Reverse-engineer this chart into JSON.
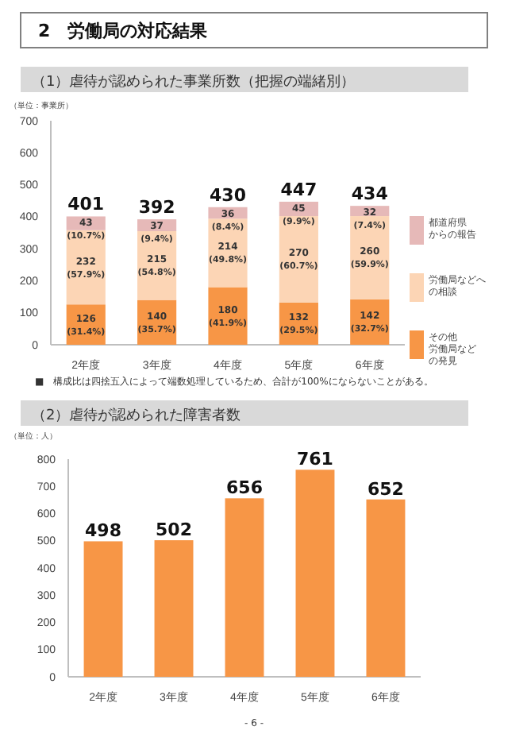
{
  "chart_data": [
    {
      "type": "bar",
      "title": "2　労働局の対応結果",
      "subtitle": "（1）虐待が認められた事業所数（把握の端緒別）",
      "ylabel": "（単位：事業所）",
      "categories": [
        "2年度",
        "3年度",
        "4年度",
        "5年度",
        "6年度"
      ],
      "stacked": true,
      "legend": "right",
      "ylim": [
        0,
        700
      ],
      "yticks": [
        0,
        100,
        200,
        300,
        400,
        500,
        600,
        700
      ],
      "series": [
        {
          "name": "その他労働局などの発見",
          "color": "#f79646",
          "values": [
            126,
            140,
            180,
            132,
            142
          ],
          "value_labels": [
            "126 (31.4%)",
            "140 (35.7%)",
            "180 (41.9%)",
            "132 (29.5%)",
            "142 (32.7%)"
          ]
        },
        {
          "name": "労働局などへの相談",
          "color": "#fcd5b5",
          "values": [
            232,
            215,
            214,
            270,
            260
          ],
          "value_labels": [
            "232 (57.9%)",
            "215 (54.8%)",
            "214 (49.8%)",
            "270 (60.7%)",
            "260 (59.9%)"
          ]
        },
        {
          "name": "都道府県からの報告",
          "color": "#e6b9b8",
          "values": [
            43,
            37,
            36,
            45,
            32
          ],
          "value_labels": [
            "43 (10.7%)",
            "37 (9.4%)",
            "36 (8.4%)",
            "45 (9.9%)",
            "32 (7.4%)"
          ]
        }
      ],
      "totals": [
        "401",
        "392",
        "430",
        "447",
        "434"
      ],
      "annotations": [
        "■　構成比は四捨五入によって端数処理しているため、合計が100%にならないことがある。"
      ]
    },
    {
      "type": "bar",
      "title": "（2）虐待が認められた障害者数",
      "ylabel": "（単位：人）",
      "categories": [
        "2年度",
        "3年度",
        "4年度",
        "5年度",
        "6年度"
      ],
      "values": [
        498,
        502,
        656,
        761,
        652
      ],
      "color": "#f79646",
      "data_labels": true,
      "ylim": [
        0,
        800
      ],
      "yticks": [
        0,
        100,
        200,
        300,
        400,
        500,
        600,
        700,
        800
      ],
      "annotations": [
        "- 6 -"
      ]
    }
  ]
}
